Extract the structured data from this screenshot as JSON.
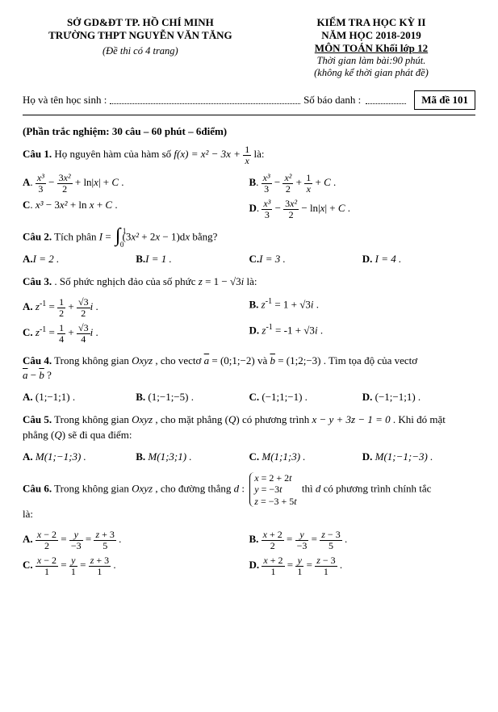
{
  "header": {
    "left1": "SỞ GD&ĐT TP. HỒ CHÍ MINH",
    "left2": "TRƯỜNG THPT NGUYỄN VĂN TĂNG",
    "left3": "(Đề thi có 4 trang)",
    "right1": "KIỂM TRA HỌC KỲ II",
    "right2": "NĂM HỌC 2018-2019",
    "right3": "MÔN TOÁN   Khối lớp 12",
    "right4": "Thời gian làm bài:90 phút.",
    "right5": "(không kể thời gian phát đề)"
  },
  "info": {
    "hoten": "Họ và tên học sinh :",
    "sbd": "Số báo danh :",
    "made": "Mã đề 101"
  },
  "section": "(Phần trắc nghiệm: 30 câu – 60 phút – 6điểm)",
  "q1": {
    "stem_a": "Câu 1.",
    "stem_b": " Họ nguyên hàm của hàm số  ",
    "stem_c": " là:"
  },
  "q2": {
    "stem_a": "Câu 2.",
    "stem_b": " Tích phân ",
    "stem_c": " bằng?",
    "A": "I = 2 .",
    "B": "I = 1 .",
    "C": "I = 3 .",
    "D": "I = 4 ."
  },
  "q3": {
    "stem_a": "Câu 3.",
    "stem_b": " . Số phức nghịch đảo của số phức ",
    "stem_c": " là:"
  },
  "q4": {
    "stem_a": "Câu 4.",
    "stem_b": " Trong không gian ",
    "stem_c": " , cho vectơ ",
    "stem_d": " và ",
    "stem_e": " . Tìm tọa độ của vectơ",
    "stem_f": " ?",
    "A": "(1;−1;1) .",
    "B": "(1;−1;−5) .",
    "C": "(−1;1;−1) .",
    "D": "(−1;−1;1) ."
  },
  "q5": {
    "stem_a": "Câu 5.",
    "stem_b": " Trong không gian ",
    "stem_c": " , cho mặt phẳng ",
    "stem_d": " có phương trình ",
    "stem_e": " . Khi đó mặt",
    "stem_f": "phẳng ",
    "stem_g": " sẽ đi qua điểm:",
    "A": "M(1;−1;3) .",
    "B": "M(1;3;1) .",
    "C": "M(1;1;3) .",
    "D": "M(1;−1;−3) ."
  },
  "q6": {
    "stem_a": "Câu 6.",
    "stem_b": " Trong không gian ",
    "stem_c": " , cho đường thẳng ",
    "stem_d": " thì ",
    "stem_e": " có phương trình chính tắc",
    "stem_f": "là:"
  }
}
